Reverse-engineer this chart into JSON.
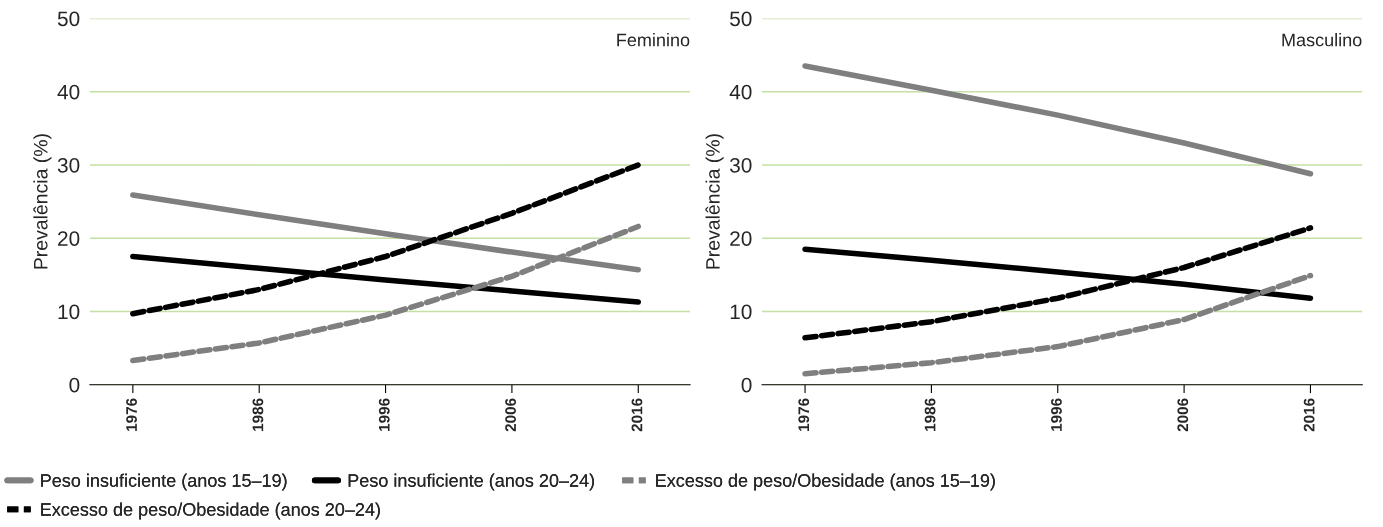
{
  "chart_data": [
    {
      "type": "line",
      "ylabel": "Prevalência (%)",
      "annotations": [
        "Feminino"
      ],
      "x": [
        1976,
        1986,
        1996,
        2006,
        2016
      ],
      "xlim": [
        1972.6,
        2020.1
      ],
      "xticks": [
        1976,
        1986,
        1996,
        2006,
        2016
      ],
      "ylim": [
        0,
        50
      ],
      "yticks": [
        0,
        10,
        20,
        30,
        40,
        50
      ],
      "grid": "y",
      "legend": "bottom",
      "series": [
        {
          "name": "Peso insuficiente (anos 15–19)",
          "color": "#7f7f7f",
          "line_style": "solid",
          "values": [
            25.9,
            23.2,
            20.6,
            18.1,
            15.7
          ]
        },
        {
          "name": "Peso insuficiente (anos 20–24)",
          "color": "#000000",
          "line_style": "solid",
          "values": [
            17.5,
            15.9,
            14.3,
            12.8,
            11.3
          ]
        },
        {
          "name": "Excesso de peso/Obesidade (anos 15–19)",
          "color": "#7f7f7f",
          "line_style": "dashed",
          "values": [
            3.3,
            5.7,
            9.5,
            14.8,
            21.6
          ]
        },
        {
          "name": "Excesso de peso/Obesidade (anos 20–24)",
          "color": "#000000",
          "line_style": "dashed",
          "values": [
            9.7,
            13.0,
            17.5,
            23.4,
            30.0
          ]
        }
      ]
    },
    {
      "type": "line",
      "ylabel": "Prevalência (%)",
      "annotations": [
        "Masculino"
      ],
      "x": [
        1976,
        1986,
        1996,
        2006,
        2016
      ],
      "xlim": [
        1972.6,
        2020.1
      ],
      "xticks": [
        1976,
        1986,
        1996,
        2006,
        2016
      ],
      "ylim": [
        0,
        50
      ],
      "yticks": [
        0,
        10,
        20,
        30,
        40,
        50
      ],
      "grid": "y",
      "series": [
        {
          "name": "Peso insuficiente (anos 15–19)",
          "color": "#7f7f7f",
          "line_style": "solid",
          "values": [
            43.5,
            40.2,
            36.8,
            33.0,
            28.8
          ]
        },
        {
          "name": "Peso insuficiente (anos 20–24)",
          "color": "#000000",
          "line_style": "solid",
          "values": [
            18.5,
            17.0,
            15.4,
            13.7,
            11.8
          ]
        },
        {
          "name": "Excesso de peso/Obesidade (anos 15–19)",
          "color": "#7f7f7f",
          "line_style": "dashed",
          "values": [
            1.5,
            3.0,
            5.2,
            8.9,
            14.9
          ]
        },
        {
          "name": "Excesso de peso/Obesidade (anos 20–24)",
          "color": "#000000",
          "line_style": "dashed",
          "values": [
            6.4,
            8.6,
            11.8,
            16.0,
            21.4
          ]
        }
      ]
    }
  ]
}
